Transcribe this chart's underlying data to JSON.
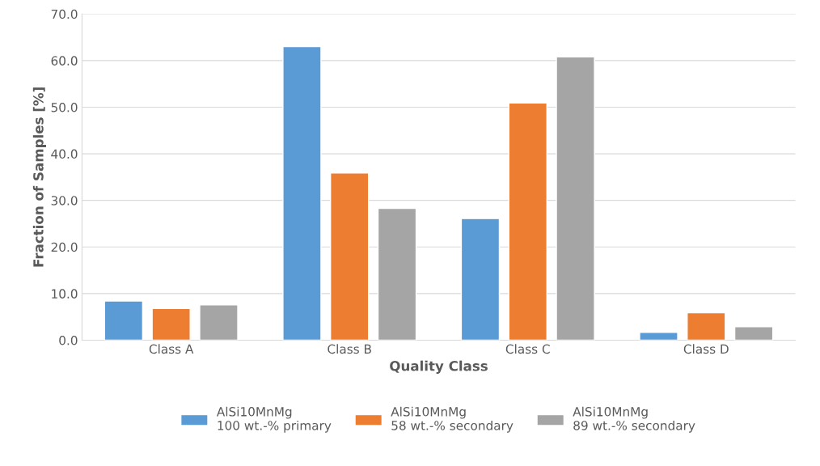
{
  "chart_data": {
    "type": "bar",
    "xlabel": "Quality Class",
    "ylabel": "Fraction of Samples [%]",
    "categories": [
      "Class A",
      "Class B",
      "Class C",
      "Class D"
    ],
    "series": [
      {
        "name": "AlSi10MnMg\n100 wt.-% primary",
        "color": "#5b9bd5",
        "values": [
          8.4,
          63.0,
          26.1,
          1.7
        ]
      },
      {
        "name": "AlSi10MnMg\n58 wt.-% secondary",
        "color": "#ed7d31",
        "values": [
          6.8,
          35.9,
          50.9,
          5.9
        ]
      },
      {
        "name": "AlSi10MnMg\n89 wt.-% secondary",
        "color": "#a5a5a5",
        "values": [
          7.6,
          28.3,
          60.8,
          2.9
        ]
      }
    ],
    "ylim": [
      0,
      70
    ],
    "yticks": [
      {
        "value": 0,
        "label": "0.0"
      },
      {
        "value": 10,
        "label": "10.0"
      },
      {
        "value": 20,
        "label": "20.0"
      },
      {
        "value": 30,
        "label": "30.0"
      },
      {
        "value": 40,
        "label": "40.0"
      },
      {
        "value": 50,
        "label": "50.0"
      },
      {
        "value": 60,
        "label": "60.0"
      },
      {
        "value": 70,
        "label": "70.0"
      }
    ],
    "grid": "y",
    "legend": "bottom"
  }
}
